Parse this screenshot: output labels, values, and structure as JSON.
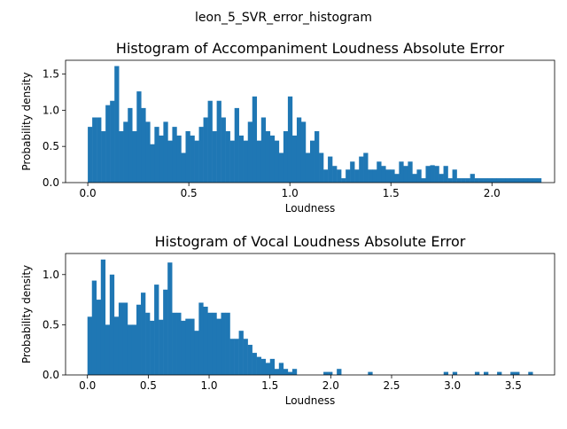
{
  "figure": {
    "suptitle": "leon_5_SVR_error_histogram"
  },
  "chart_data": [
    {
      "type": "bar",
      "title": "Histogram of Accompaniment Loudness Absolute Error",
      "xlabel": "Loudness",
      "ylabel": "Probability density",
      "xlim": [
        -0.11,
        2.31
      ],
      "ylim": [
        0,
        1.69
      ],
      "xticks": [
        0.0,
        0.5,
        1.0,
        1.5,
        2.0
      ],
      "xtick_labels": [
        "0.0",
        "0.5",
        "1.0",
        "1.5",
        "2.0"
      ],
      "yticks": [
        0.0,
        0.5,
        1.0,
        1.5
      ],
      "ytick_labels": [
        "0.0",
        "0.5",
        "1.0",
        "1.5"
      ],
      "bin_start": 0.0,
      "bin_width": 0.022,
      "values": [
        0.77,
        0.9,
        0.9,
        0.71,
        1.07,
        1.13,
        1.61,
        0.71,
        0.84,
        1.03,
        0.71,
        1.26,
        1.03,
        0.84,
        0.53,
        0.77,
        0.65,
        0.84,
        0.58,
        0.77,
        0.65,
        0.41,
        0.71,
        0.65,
        0.58,
        0.77,
        0.9,
        1.13,
        0.71,
        1.13,
        0.9,
        0.71,
        0.58,
        1.03,
        0.65,
        0.58,
        0.84,
        1.19,
        0.58,
        0.9,
        0.71,
        0.65,
        0.58,
        0.41,
        0.71,
        1.19,
        0.65,
        0.9,
        0.84,
        0.41,
        0.58,
        0.71,
        0.41,
        0.18,
        0.36,
        0.23,
        0.18,
        0.06,
        0.18,
        0.29,
        0.18,
        0.36,
        0.41,
        0.18,
        0.18,
        0.29,
        0.23,
        0.18,
        0.18,
        0.12,
        0.29,
        0.23,
        0.29,
        0.12,
        0.18,
        0.06,
        0.23,
        0.24,
        0.23,
        0.12,
        0.23,
        0.06,
        0.18,
        0.06,
        0.06,
        0.06,
        0.12,
        0.06,
        0.06,
        0.06,
        0.06,
        0.06,
        0.06,
        0.06,
        0.06,
        0.06,
        0.06,
        0.06,
        0.06,
        0.06,
        0.06,
        0.06
      ],
      "note_values": "bar heights in probability-density units",
      "color": "#1f77b4"
    },
    {
      "type": "bar",
      "title": "Histogram of Vocal Loudness Absolute Error",
      "xlabel": "Loudness",
      "ylabel": "Probability density",
      "xlim": [
        -0.18,
        3.84
      ],
      "ylim": [
        0,
        1.21
      ],
      "xticks": [
        0.0,
        0.5,
        1.0,
        1.5,
        2.0,
        2.5,
        3.0,
        3.5
      ],
      "xtick_labels": [
        "0.0",
        "0.5",
        "1.0",
        "1.5",
        "2.0",
        "2.5",
        "3.0",
        "3.5"
      ],
      "yticks": [
        0.0,
        0.5,
        1.0
      ],
      "ytick_labels": [
        "0.0",
        "0.5",
        "1.0"
      ],
      "bin_start": 0.0,
      "bin_width": 0.0366,
      "values": [
        0.58,
        0.94,
        0.75,
        1.15,
        0.5,
        1.0,
        0.58,
        0.72,
        0.72,
        0.5,
        0.5,
        0.7,
        0.82,
        0.62,
        0.54,
        0.9,
        0.55,
        0.85,
        1.12,
        0.62,
        0.62,
        0.54,
        0.56,
        0.56,
        0.44,
        0.72,
        0.68,
        0.62,
        0.62,
        0.56,
        0.62,
        0.62,
        0.36,
        0.36,
        0.44,
        0.36,
        0.3,
        0.22,
        0.18,
        0.16,
        0.12,
        0.16,
        0.06,
        0.12,
        0.06,
        0.03,
        0.06,
        0,
        0,
        0,
        0,
        0,
        0,
        0.03,
        0.03,
        0,
        0.06,
        0,
        0,
        0,
        0,
        0,
        0,
        0.03,
        0,
        0,
        0,
        0,
        0,
        0,
        0,
        0,
        0,
        0,
        0,
        0,
        0,
        0,
        0,
        0,
        0.03,
        0,
        0.03,
        0,
        0,
        0,
        0,
        0.03,
        0,
        0.03,
        0,
        0,
        0.03,
        0,
        0,
        0.03,
        0.03,
        0,
        0,
        0.03
      ],
      "color": "#1f77b4"
    }
  ]
}
